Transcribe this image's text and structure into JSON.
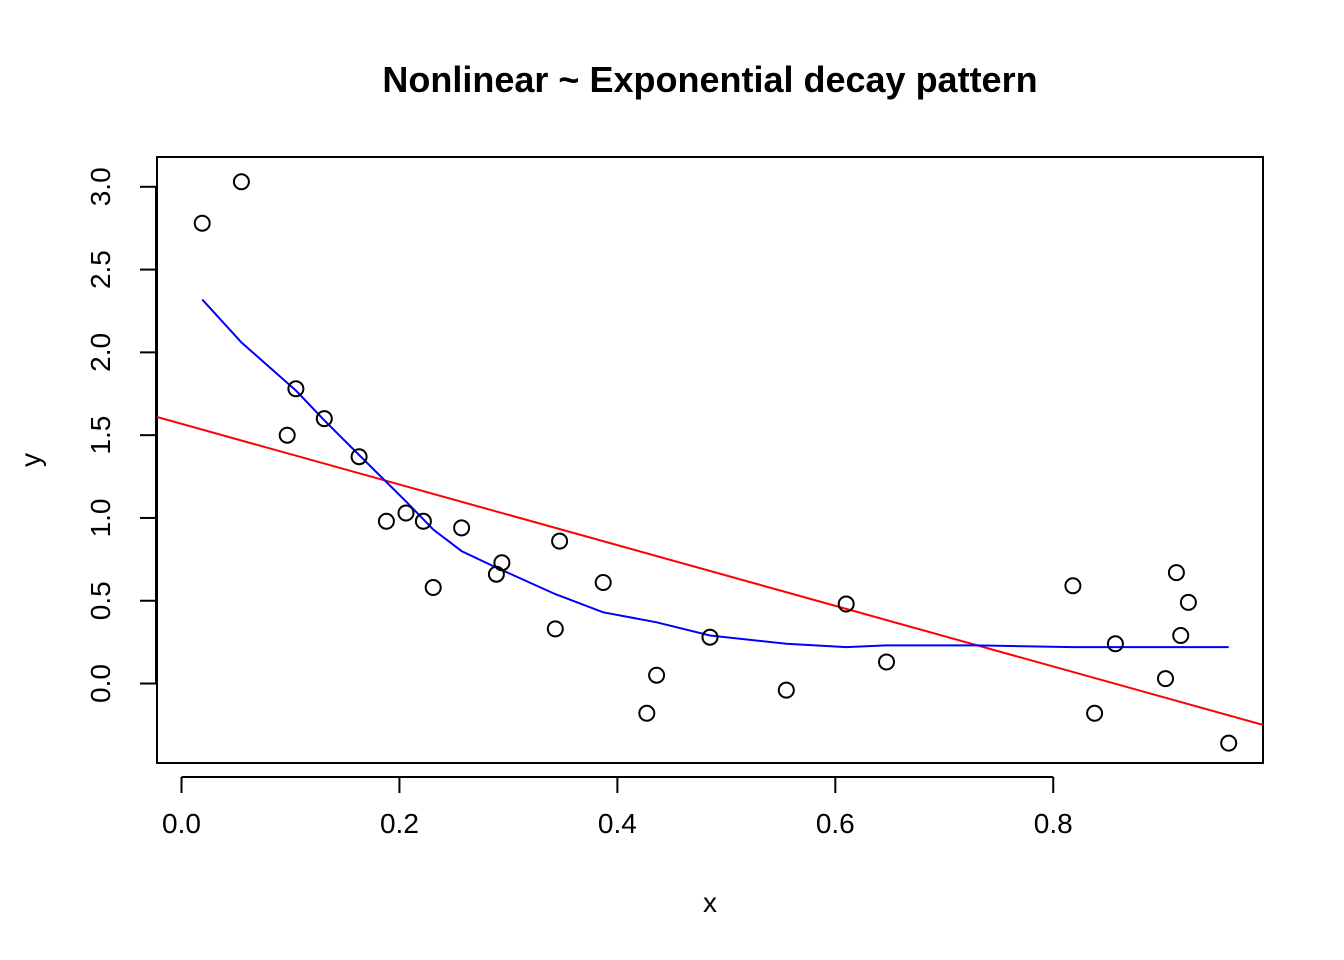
{
  "chart_data": {
    "type": "scatter",
    "title": "Nonlinear ~ Exponential decay pattern",
    "xlabel": "x",
    "ylabel": "y",
    "xlim": [
      -0.0225,
      0.9925
    ],
    "ylim": [
      -0.48,
      3.18
    ],
    "x_ticks": [
      0.0,
      0.2,
      0.4,
      0.6,
      0.8
    ],
    "x_tick_labels": [
      "0.0",
      "0.2",
      "0.4",
      "0.6",
      "0.8"
    ],
    "y_ticks": [
      0.0,
      0.5,
      1.0,
      1.5,
      2.0,
      2.5,
      3.0
    ],
    "y_tick_labels": [
      "0.0",
      "0.5",
      "1.0",
      "1.5",
      "2.0",
      "2.5",
      "3.0"
    ],
    "grid": false,
    "legend": "none",
    "points": {
      "x": [
        0.019,
        0.055,
        0.097,
        0.105,
        0.131,
        0.163,
        0.188,
        0.206,
        0.222,
        0.231,
        0.257,
        0.289,
        0.294,
        0.343,
        0.347,
        0.387,
        0.427,
        0.436,
        0.485,
        0.555,
        0.61,
        0.647,
        0.818,
        0.838,
        0.857,
        0.903,
        0.913,
        0.917,
        0.924,
        0.961
      ],
      "y": [
        2.78,
        3.03,
        1.5,
        1.78,
        1.6,
        1.37,
        0.98,
        1.03,
        0.98,
        0.58,
        0.94,
        0.66,
        0.73,
        0.33,
        0.86,
        0.61,
        -0.18,
        0.05,
        0.28,
        -0.04,
        0.48,
        0.13,
        0.59,
        -0.18,
        0.24,
        0.03,
        0.67,
        0.29,
        0.49,
        -0.36
      ]
    },
    "series": [
      {
        "type": "line",
        "color": "#ff0000",
        "x": [
          -0.0225,
          0.9925
        ],
        "y": [
          1.61,
          -0.25
        ]
      },
      {
        "type": "line",
        "color": "#0000ff",
        "x": [
          0.019,
          0.055,
          0.105,
          0.131,
          0.163,
          0.206,
          0.231,
          0.257,
          0.289,
          0.343,
          0.387,
          0.436,
          0.485,
          0.555,
          0.61,
          0.647,
          0.73,
          0.818,
          0.9,
          0.961
        ],
        "y": [
          2.32,
          2.06,
          1.77,
          1.59,
          1.38,
          1.1,
          0.93,
          0.8,
          0.7,
          0.54,
          0.43,
          0.37,
          0.29,
          0.24,
          0.22,
          0.23,
          0.23,
          0.22,
          0.22,
          0.22
        ]
      }
    ]
  }
}
